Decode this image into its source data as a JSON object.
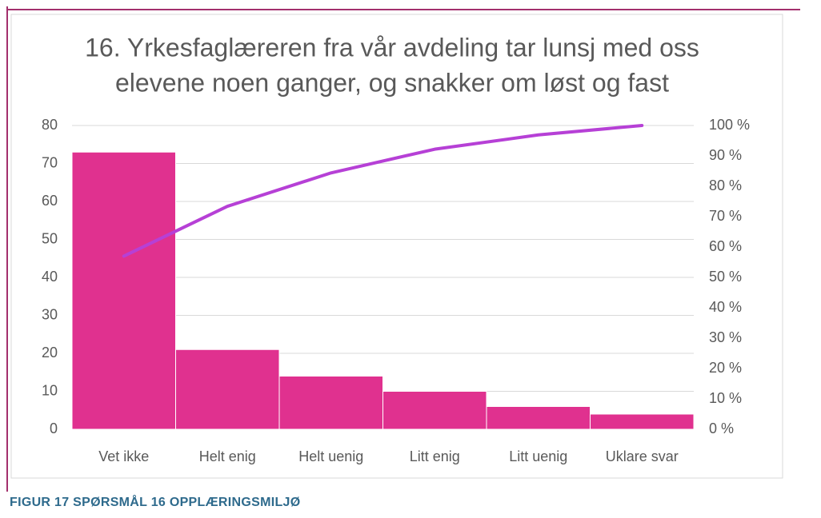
{
  "chart_data": {
    "type": "pareto",
    "title": [
      "16. Yrkesfaglæreren fra vår avdeling tar lunsj med oss",
      "elevene noen ganger, og snakker om løst og fast"
    ],
    "categories": [
      "Vet ikke",
      "Helt enig",
      "Helt uenig",
      "Litt enig",
      "Litt uenig",
      "Uklare svar"
    ],
    "series": [
      {
        "type": "bar",
        "color": "#e0318f",
        "values": [
          73,
          21,
          14,
          10,
          6,
          4
        ]
      },
      {
        "type": "line",
        "color": "#b640d6",
        "axis": "y2",
        "values": [
          57.0,
          73.4,
          84.4,
          92.2,
          96.9,
          100
        ]
      }
    ],
    "ylim": [
      0,
      80
    ],
    "yticks": [
      0,
      10,
      20,
      30,
      40,
      50,
      60,
      70,
      80
    ],
    "y2lim": [
      0,
      100
    ],
    "y2ticks": [
      {
        "value": 0,
        "label": "0 %"
      },
      {
        "value": 10,
        "label": "10 %"
      },
      {
        "value": 20,
        "label": "20 %"
      },
      {
        "value": 30,
        "label": "30 %"
      },
      {
        "value": 40,
        "label": "40 %"
      },
      {
        "value": 50,
        "label": "50 %"
      },
      {
        "value": 60,
        "label": "60 %"
      },
      {
        "value": 70,
        "label": "70 %"
      },
      {
        "value": 80,
        "label": "80 %"
      },
      {
        "value": 90,
        "label": "90 %"
      },
      {
        "value": 100,
        "label": "100 %"
      }
    ],
    "grid": true
  },
  "caption": "FIGUR 17 SPØRSMÅL 16 OPPLÆRINGSMILJØ"
}
